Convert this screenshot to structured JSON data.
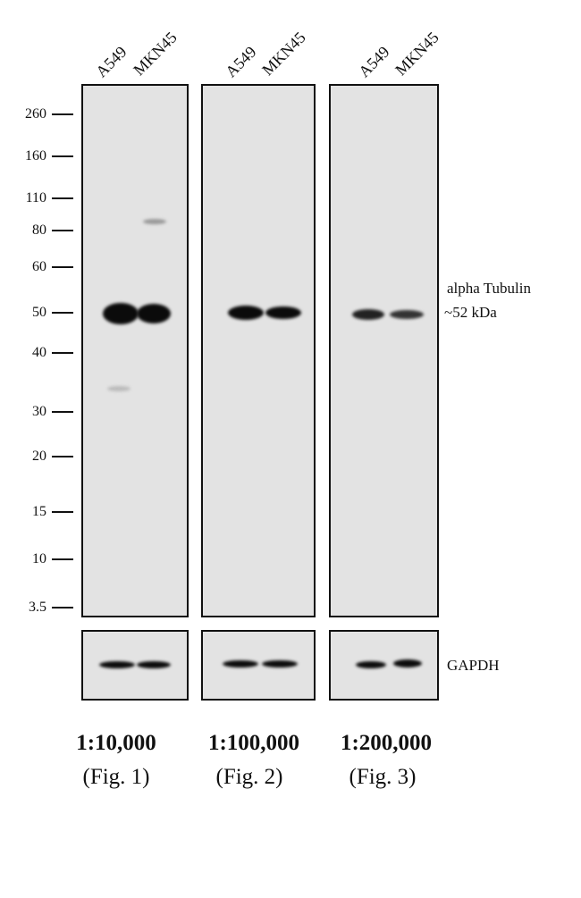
{
  "lanes": [
    "A549",
    "MKN45"
  ],
  "markers": [
    "260",
    "160",
    "110",
    "80",
    "60",
    "50",
    "40",
    "30",
    "20",
    "15",
    "10",
    "3.5"
  ],
  "target": {
    "name": "alpha Tubulin",
    "size": "~52 kDa"
  },
  "loading_control": "GAPDH",
  "panels": [
    {
      "dilution": "1:10,000",
      "figure": "(Fig. 1)"
    },
    {
      "dilution": "1:100,000",
      "figure": "(Fig. 2)"
    },
    {
      "dilution": "1:200,000",
      "figure": "(Fig. 3)"
    }
  ]
}
